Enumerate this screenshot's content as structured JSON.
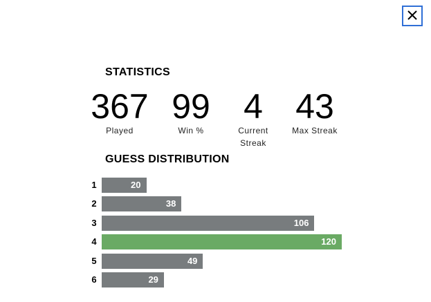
{
  "header": {
    "title": "STATISTICS"
  },
  "stats": [
    {
      "value": 367,
      "label": "Played"
    },
    {
      "value": 99,
      "label": "Win %"
    },
    {
      "value": 4,
      "label": "Current Streak"
    },
    {
      "value": 43,
      "label": "Max Streak"
    }
  ],
  "guess_distribution": {
    "title": "GUESS DISTRIBUTION",
    "categories": [
      "1",
      "2",
      "3",
      "4",
      "5",
      "6"
    ],
    "values": [
      20,
      38,
      106,
      120,
      49,
      29
    ],
    "colors": [
      "#787c7e",
      "#787c7e",
      "#787c7e",
      "#6aaa64",
      "#787c7e",
      "#787c7e"
    ]
  }
}
